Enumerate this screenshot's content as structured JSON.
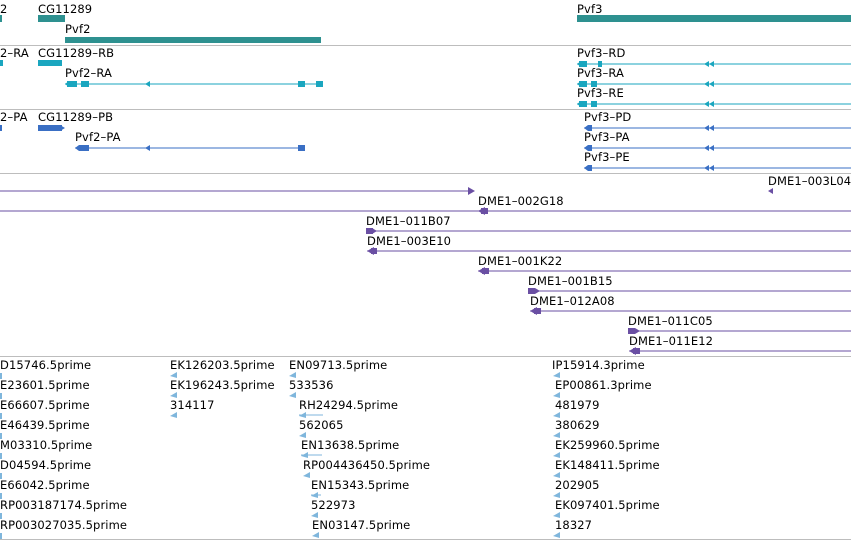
{
  "genome_browser": {
    "tracks": [
      {
        "id": "genes",
        "color": "#2e9190",
        "labels": [
          "2",
          "CG11289",
          "Pvf2",
          "Pvf3"
        ]
      },
      {
        "id": "transcripts-RNA",
        "color": "#1aa6bf",
        "labels": [
          "2–RA",
          "CG11289–RB",
          "Pvf2–RA",
          "Pvf3–RD",
          "Pvf3–RA",
          "Pvf3–RE"
        ]
      },
      {
        "id": "transcripts-protein",
        "color": "#3a6fc4",
        "labels": [
          "2–PA",
          "CG11289–PB",
          "Pvf2–PA",
          "Pvf3–PD",
          "Pvf3–PA",
          "Pvf3–PE"
        ]
      },
      {
        "id": "clones",
        "color": "#6a4fa3",
        "labels": [
          "DME1–003L04",
          "DME1–002G18",
          "DME1–011B07",
          "DME1–003E10",
          "DME1–001K22",
          "DME1–001B15",
          "DME1–012A08",
          "DME1–011C05",
          "DME1–011E12"
        ]
      },
      {
        "id": "ests",
        "color": "#7fb6dc",
        "labels": [
          "D15746.5prime",
          "E23601.5prime",
          "E66607.5prime",
          "E46439.5prime",
          "M03310.5prime",
          "D04594.5prime",
          "E66042.5prime",
          "RP003187174.5prime",
          "RP003027035.5prime",
          "EK126203.5prime",
          "EK196243.5prime",
          "314117",
          "EN09713.5prime",
          "533536",
          "RH24294.5prime",
          "562065",
          "EN13638.5prime",
          "RP004436450.5prime",
          "EN15343.5prime",
          "522973",
          "EN03147.5prime",
          "IP15914.3prime",
          "EP00861.3prime",
          "481979",
          "380629",
          "EK259960.5prime",
          "EK148411.5prime",
          "202905",
          "EK097401.5prime",
          "18327"
        ]
      }
    ]
  }
}
